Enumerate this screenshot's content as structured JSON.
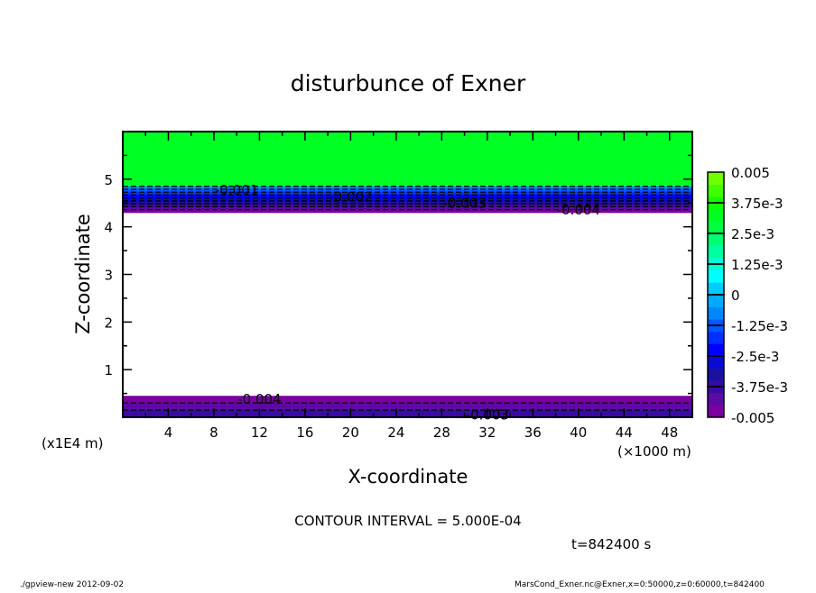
{
  "chart_data": {
    "type": "contour",
    "title": "disturbunce of Exner",
    "xlabel": "X-coordinate",
    "ylabel": "Z-coordinate",
    "x_unit_label": "(×1000 m)",
    "y_unit_label": "(x1E4 m)",
    "xlim": [
      0,
      50
    ],
    "ylim": [
      0,
      6
    ],
    "x_ticks": [
      4,
      8,
      12,
      16,
      20,
      24,
      28,
      32,
      36,
      40,
      44,
      48
    ],
    "y_ticks": [
      1,
      2,
      3,
      4,
      5
    ],
    "contour_interval_text": "CONTOUR INTERVAL = 5.000E-04",
    "time_text": "t=842400  s",
    "color_range": [
      -0.005,
      0.005
    ],
    "color_step": 0.0005,
    "colorbar_labels": [
      "0.005",
      "3.75e-3",
      "2.5e-3",
      "1.25e-3",
      "0",
      "-1.25e-3",
      "-2.5e-3",
      "-3.75e-3",
      "-0.005"
    ],
    "bin_colors": [
      "#7a00a0",
      "#5c0aa4",
      "#3a0aa8",
      "#1a10a0",
      "#0a0ad8",
      "#0000ff",
      "#0030ff",
      "#0058ff",
      "#0088ff",
      "#00aaff",
      "#00ccff",
      "#00ffff",
      "#00ffd8",
      "#00ffa0",
      "#00ff70",
      "#00ff40",
      "#00ff20",
      "#10ff00",
      "#40ff00",
      "#70ff00"
    ],
    "pos_bin_colors": [
      "#90ff00",
      "#b8ff00",
      "#e0ff00",
      "#ffff00",
      "#ffd000",
      "#ffb000",
      "#ff8000",
      "#ff5000",
      "#ff2000",
      "#ff4040",
      "#ff6060",
      "#ff8080",
      "#ff9999"
    ],
    "background_value_color": "#00ff22",
    "upper_layer": {
      "z_top": 4.85,
      "z_bottom": 4.3,
      "value_top": -0.0005,
      "value_bottom": -0.005
    },
    "lower_layer": {
      "z_top": 0.45,
      "z_bottom": 0.0,
      "value_top": -0.005,
      "value_bottom": -0.0035
    },
    "contour_labels_upper": [
      "-0.001",
      "-0.002",
      "-0.003",
      "-0.004"
    ],
    "contour_labels_lower": [
      "-0.004",
      "-0.003"
    ]
  },
  "footer": {
    "left": "./gpview-new   2012-09-02",
    "right": "MarsCond_Exner.nc@Exner,x=0:50000,z=0:60000,t=842400"
  }
}
